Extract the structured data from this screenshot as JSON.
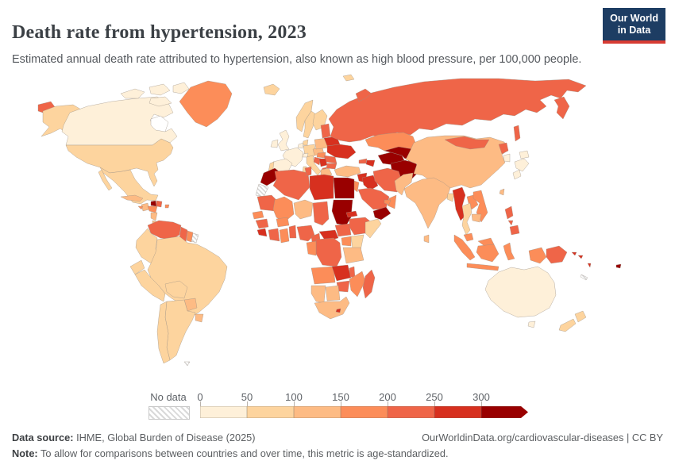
{
  "header": {
    "title": "Death rate from hypertension, 2023",
    "subtitle": "Estimated annual death rate attributed to hypertension, also known as high blood pressure, per 100,000 people.",
    "logo_line1": "Our World",
    "logo_line2": "in Data",
    "brand_colors": {
      "logo_bg": "#1d3d63",
      "logo_stripe": "#d73b33"
    }
  },
  "legend": {
    "no_data_label": "No data",
    "tick_labels": [
      "0",
      "50",
      "100",
      "150",
      "200",
      "250",
      "300"
    ],
    "colors": [
      "#fef0d9",
      "#fdd49e",
      "#fdbb84",
      "#fc8d59",
      "#ef6548",
      "#d7301f",
      "#990000"
    ]
  },
  "footer": {
    "source_label": "Data source:",
    "source_text": " IHME, Global Burden of Disease (2025)",
    "right_text": "OurWorldinData.org/cardiovascular-diseases | CC BY",
    "note_label": "Note:",
    "note_text": " To allow for comparisons between countries and over time, this metric is age-standardized."
  },
  "chart_data": {
    "type": "choropleth_map",
    "title": "Death rate from hypertension, 2023",
    "unit": "deaths per 100,000 people (age-standardized)",
    "year": 2023,
    "legend_position": "bottom",
    "bin_ranges": [
      "0-50",
      "50-100",
      "100-150",
      "150-200",
      "200-250",
      "250-300",
      ">300"
    ],
    "bin_colors": [
      "#fef0d9",
      "#fdd49e",
      "#fdbb84",
      "#fc8d59",
      "#ef6548",
      "#d7301f",
      "#990000"
    ],
    "no_data_style": "gray diagonal hatching",
    "regions": [
      {
        "id": "canada",
        "name": "Canada",
        "bin": 0
      },
      {
        "id": "usa",
        "name": "United States",
        "bin": 1
      },
      {
        "id": "greenland",
        "name": "Greenland",
        "bin": 3
      },
      {
        "id": "iceland",
        "name": "Iceland",
        "bin": 1
      },
      {
        "id": "mexico",
        "name": "Mexico",
        "bin": 1
      },
      {
        "id": "guatemala",
        "name": "Guatemala",
        "bin": 2
      },
      {
        "id": "honduras",
        "name": "Honduras",
        "bin": 3
      },
      {
        "id": "nicaragua",
        "name": "Nicaragua",
        "bin": 2
      },
      {
        "id": "costa-rica",
        "name": "Costa Rica",
        "bin": 2
      },
      {
        "id": "panama",
        "name": "Panama",
        "bin": 3
      },
      {
        "id": "cuba",
        "name": "Cuba",
        "bin": 2
      },
      {
        "id": "jamaica",
        "name": "Jamaica",
        "bin": 3
      },
      {
        "id": "haiti",
        "name": "Haiti",
        "bin": 6
      },
      {
        "id": "dominican-republic",
        "name": "Dominican Republic",
        "bin": 4
      },
      {
        "id": "puerto-rico",
        "name": "Puerto Rico",
        "bin": 3
      },
      {
        "id": "venezuela",
        "name": "Venezuela",
        "bin": 4
      },
      {
        "id": "guyana",
        "name": "Guyana",
        "bin": 4
      },
      {
        "id": "suriname",
        "name": "Suriname",
        "bin": 3
      },
      {
        "id": "french-guiana",
        "name": "French Guiana",
        "bin": null
      },
      {
        "id": "colombia",
        "name": "Colombia",
        "bin": 1
      },
      {
        "id": "ecuador",
        "name": "Ecuador",
        "bin": 1
      },
      {
        "id": "peru",
        "name": "Peru",
        "bin": 1
      },
      {
        "id": "brazil",
        "name": "Brazil",
        "bin": 1
      },
      {
        "id": "bolivia",
        "name": "Bolivia",
        "bin": 1
      },
      {
        "id": "paraguay",
        "name": "Paraguay",
        "bin": 2
      },
      {
        "id": "uruguay",
        "name": "Uruguay",
        "bin": 2
      },
      {
        "id": "argentina",
        "name": "Argentina",
        "bin": 1
      },
      {
        "id": "chile",
        "name": "Chile",
        "bin": 1
      },
      {
        "id": "falkland-islands",
        "name": "Falkland Islands",
        "bin": null
      },
      {
        "id": "uk",
        "name": "United Kingdom",
        "bin": 0
      },
      {
        "id": "ireland",
        "name": "Ireland",
        "bin": 0
      },
      {
        "id": "norway",
        "name": "Norway",
        "bin": 1
      },
      {
        "id": "sweden",
        "name": "Sweden",
        "bin": 1
      },
      {
        "id": "finland",
        "name": "Finland",
        "bin": 1
      },
      {
        "id": "denmark",
        "name": "Denmark",
        "bin": 1
      },
      {
        "id": "germany",
        "name": "Germany",
        "bin": 1
      },
      {
        "id": "benelux",
        "name": "Netherlands / Belgium",
        "bin": 0
      },
      {
        "id": "france",
        "name": "France",
        "bin": 0
      },
      {
        "id": "spain",
        "name": "Spain",
        "bin": 0
      },
      {
        "id": "portugal",
        "name": "Portugal",
        "bin": 1
      },
      {
        "id": "switzerland",
        "name": "Switzerland",
        "bin": 0
      },
      {
        "id": "italy",
        "name": "Italy",
        "bin": 1
      },
      {
        "id": "austria-czech",
        "name": "Austria / Czechia",
        "bin": 2
      },
      {
        "id": "poland",
        "name": "Poland",
        "bin": 2
      },
      {
        "id": "baltics",
        "name": "Baltic states",
        "bin": 4
      },
      {
        "id": "belarus",
        "name": "Belarus",
        "bin": 5
      },
      {
        "id": "ukraine",
        "name": "Ukraine",
        "bin": 5
      },
      {
        "id": "romania",
        "name": "Romania",
        "bin": 4
      },
      {
        "id": "hungary",
        "name": "Hungary",
        "bin": 3
      },
      {
        "id": "serbia",
        "name": "Serbia",
        "bin": 5
      },
      {
        "id": "croatia-bosnia",
        "name": "Croatia / Bosnia",
        "bin": 4
      },
      {
        "id": "albania",
        "name": "Albania / N. Macedonia",
        "bin": 4
      },
      {
        "id": "greece",
        "name": "Greece",
        "bin": 2
      },
      {
        "id": "bulgaria",
        "name": "Bulgaria",
        "bin": 4
      },
      {
        "id": "russia",
        "name": "Russia",
        "bin": 4
      },
      {
        "id": "turkey",
        "name": "Turkey",
        "bin": 2
      },
      {
        "id": "syria",
        "name": "Syria",
        "bin": 5
      },
      {
        "id": "israel-jordan",
        "name": "Israel / Jordan",
        "bin": 3
      },
      {
        "id": "iraq",
        "name": "Iraq",
        "bin": 5
      },
      {
        "id": "iran",
        "name": "Iran",
        "bin": 4
      },
      {
        "id": "saudi-arabia",
        "name": "Saudi Arabia",
        "bin": 4
      },
      {
        "id": "yemen",
        "name": "Yemen",
        "bin": 6
      },
      {
        "id": "oman",
        "name": "Oman",
        "bin": 3
      },
      {
        "id": "uae",
        "name": "United Arab Emirates",
        "bin": 3
      },
      {
        "id": "georgia",
        "name": "Georgia",
        "bin": 4
      },
      {
        "id": "azerbaijan",
        "name": "Azerbaijan / Armenia",
        "bin": 5
      },
      {
        "id": "kazakhstan",
        "name": "Kazakhstan",
        "bin": 3
      },
      {
        "id": "uzbekistan",
        "name": "Uzbekistan",
        "bin": 6
      },
      {
        "id": "turkmenistan",
        "name": "Turkmenistan",
        "bin": 6
      },
      {
        "id": "kyrgyzstan",
        "name": "Kyrgyzstan",
        "bin": 5
      },
      {
        "id": "tajikistan",
        "name": "Tajikistan",
        "bin": 6
      },
      {
        "id": "afghanistan",
        "name": "Afghanistan",
        "bin": 6
      },
      {
        "id": "pakistan",
        "name": "Pakistan",
        "bin": 2
      },
      {
        "id": "india",
        "name": "India",
        "bin": 2
      },
      {
        "id": "bangladesh",
        "name": "Bangladesh",
        "bin": 1
      },
      {
        "id": "sri-lanka",
        "name": "Sri Lanka",
        "bin": 2
      },
      {
        "id": "china",
        "name": "China",
        "bin": 2
      },
      {
        "id": "mongolia",
        "name": "Mongolia",
        "bin": 4
      },
      {
        "id": "north-korea",
        "name": "North Korea",
        "bin": 4
      },
      {
        "id": "south-korea",
        "name": "South Korea",
        "bin": 0
      },
      {
        "id": "japan",
        "name": "Japan",
        "bin": 0
      },
      {
        "id": "taiwan",
        "name": "Taiwan",
        "bin": 2
      },
      {
        "id": "myanmar",
        "name": "Myanmar",
        "bin": 5
      },
      {
        "id": "thailand",
        "name": "Thailand",
        "bin": 1
      },
      {
        "id": "laos",
        "name": "Laos",
        "bin": 3
      },
      {
        "id": "vietnam",
        "name": "Vietnam",
        "bin": 3
      },
      {
        "id": "cambodia",
        "name": "Cambodia",
        "bin": 2
      },
      {
        "id": "malaysia",
        "name": "Malaysia",
        "bin": 3
      },
      {
        "id": "indonesia",
        "name": "Indonesia",
        "bin": 3
      },
      {
        "id": "philippines",
        "name": "Philippines",
        "bin": 4
      },
      {
        "id": "papua-new-guinea",
        "name": "Papua New Guinea",
        "bin": 4
      },
      {
        "id": "australia",
        "name": "Australia",
        "bin": 0
      },
      {
        "id": "new-zealand",
        "name": "New Zealand",
        "bin": 1
      },
      {
        "id": "fiji",
        "name": "Fiji",
        "bin": 6
      },
      {
        "id": "solomon-islands",
        "name": "Solomon Islands",
        "bin": 5
      },
      {
        "id": "vanuatu",
        "name": "Vanuatu",
        "bin": 5
      },
      {
        "id": "new-caledonia",
        "name": "New Caledonia",
        "bin": null
      },
      {
        "id": "morocco",
        "name": "Morocco",
        "bin": 6
      },
      {
        "id": "western-sahara",
        "name": "Western Sahara",
        "bin": null
      },
      {
        "id": "algeria",
        "name": "Algeria",
        "bin": 4
      },
      {
        "id": "tunisia",
        "name": "Tunisia",
        "bin": 4
      },
      {
        "id": "libya",
        "name": "Libya",
        "bin": 5
      },
      {
        "id": "egypt",
        "name": "Egypt",
        "bin": 6
      },
      {
        "id": "mauritania",
        "name": "Mauritania",
        "bin": 4
      },
      {
        "id": "mali",
        "name": "Mali",
        "bin": 3
      },
      {
        "id": "niger",
        "name": "Niger",
        "bin": 2
      },
      {
        "id": "chad",
        "name": "Chad",
        "bin": 4
      },
      {
        "id": "sudan",
        "name": "Sudan",
        "bin": 6
      },
      {
        "id": "eritrea",
        "name": "Eritrea",
        "bin": 5
      },
      {
        "id": "senegal",
        "name": "Senegal",
        "bin": 3
      },
      {
        "id": "guinea",
        "name": "Guinea",
        "bin": 4
      },
      {
        "id": "sierra-leone",
        "name": "Sierra Leone / Liberia",
        "bin": 5
      },
      {
        "id": "cote-divoire",
        "name": "Côte d'Ivoire",
        "bin": 4
      },
      {
        "id": "ghana",
        "name": "Ghana",
        "bin": 3
      },
      {
        "id": "togo-benin",
        "name": "Togo / Benin",
        "bin": 4
      },
      {
        "id": "burkina-faso",
        "name": "Burkina Faso",
        "bin": 3
      },
      {
        "id": "nigeria",
        "name": "Nigeria",
        "bin": 4
      },
      {
        "id": "cameroon",
        "name": "Cameroon",
        "bin": 4
      },
      {
        "id": "central-african-republic",
        "name": "Central African Republic",
        "bin": 5
      },
      {
        "id": "south-sudan",
        "name": "South Sudan",
        "bin": 4
      },
      {
        "id": "ethiopia",
        "name": "Ethiopia",
        "bin": 4
      },
      {
        "id": "somalia",
        "name": "Somalia",
        "bin": 1
      },
      {
        "id": "kenya",
        "name": "Kenya",
        "bin": 1
      },
      {
        "id": "uganda",
        "name": "Uganda",
        "bin": 3
      },
      {
        "id": "tanzania",
        "name": "Tanzania",
        "bin": 2
      },
      {
        "id": "drc",
        "name": "Democratic Republic of Congo",
        "bin": 4
      },
      {
        "id": "congo-gabon",
        "name": "Congo / Gabon",
        "bin": 3
      },
      {
        "id": "angola",
        "name": "Angola",
        "bin": 3
      },
      {
        "id": "zambia",
        "name": "Zambia",
        "bin": 5
      },
      {
        "id": "malawi",
        "name": "Malawi",
        "bin": 4
      },
      {
        "id": "mozambique",
        "name": "Mozambique",
        "bin": 3
      },
      {
        "id": "zimbabwe",
        "name": "Zimbabwe",
        "bin": 4
      },
      {
        "id": "botswana",
        "name": "Botswana",
        "bin": 2
      },
      {
        "id": "namibia",
        "name": "Namibia",
        "bin": 2
      },
      {
        "id": "south-africa",
        "name": "South Africa",
        "bin": 2
      },
      {
        "id": "lesotho",
        "name": "Lesotho",
        "bin": 5
      },
      {
        "id": "madagascar",
        "name": "Madagascar",
        "bin": 4
      }
    ]
  }
}
